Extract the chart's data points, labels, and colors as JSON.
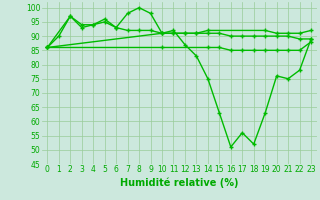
{
  "line1_x": [
    0,
    1,
    2,
    3,
    4,
    5,
    6,
    7,
    8,
    9,
    10,
    11,
    12,
    13,
    14,
    15,
    16,
    17,
    18,
    19,
    20,
    21,
    22,
    23
  ],
  "line1_y": [
    86,
    90,
    97,
    93,
    94,
    96,
    93,
    98,
    100,
    98,
    91,
    92,
    87,
    83,
    75,
    63,
    51,
    56,
    52,
    63,
    76,
    75,
    78,
    89
  ],
  "line2_x": [
    0,
    2,
    3,
    4,
    5,
    6,
    7,
    8,
    9,
    10,
    11,
    12,
    13,
    14,
    19,
    20,
    21,
    22,
    23
  ],
  "line2_y": [
    86,
    97,
    94,
    94,
    95,
    93,
    92,
    92,
    92,
    91,
    91,
    91,
    91,
    92,
    92,
    91,
    91,
    91,
    92
  ],
  "line3_x": [
    0,
    10,
    11,
    12,
    13,
    14,
    15,
    16,
    17,
    18,
    19,
    20,
    21,
    22,
    23
  ],
  "line3_y": [
    86,
    91,
    91,
    91,
    91,
    91,
    91,
    90,
    90,
    90,
    90,
    90,
    90,
    89,
    89
  ],
  "line4_x": [
    0,
    10,
    14,
    15,
    16,
    17,
    18,
    19,
    20,
    21,
    22,
    23
  ],
  "line4_y": [
    86,
    86,
    86,
    86,
    85,
    85,
    85,
    85,
    85,
    85,
    85,
    88
  ],
  "xlabel": "Humidité relative (%)",
  "xlim_min": -0.5,
  "xlim_max": 23.5,
  "ylim_min": 45,
  "ylim_max": 102,
  "yticks": [
    45,
    50,
    55,
    60,
    65,
    70,
    75,
    80,
    85,
    90,
    95,
    100
  ],
  "xticks": [
    0,
    1,
    2,
    3,
    4,
    5,
    6,
    7,
    8,
    9,
    10,
    11,
    12,
    13,
    14,
    15,
    16,
    17,
    18,
    19,
    20,
    21,
    22,
    23
  ],
  "grid_color": "#99cc99",
  "bg_color": "#cce8dd",
  "line_color": "#00bb00",
  "tick_color": "#00aa00",
  "xlabel_color": "#00aa00",
  "xlabel_fontsize": 7,
  "tick_fontsize": 5.5,
  "linewidth": 1.0,
  "markersize": 3.5
}
